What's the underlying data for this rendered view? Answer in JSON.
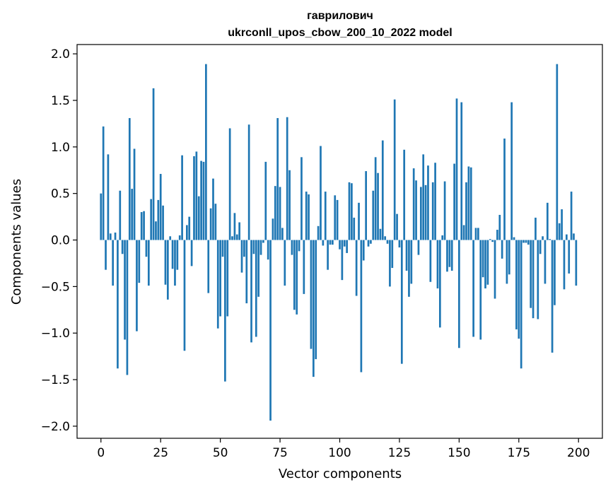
{
  "chart_data": {
    "type": "bar",
    "title": "гаврилович",
    "subtitle": "ukrconll_upos_cbow_200_10_2022 model",
    "xlabel": "Vector components",
    "ylabel": "Components values",
    "xlim": [
      -10,
      210
    ],
    "ylim": [
      -2.13,
      2.1
    ],
    "xticks": [
      0,
      25,
      50,
      75,
      100,
      125,
      150,
      175,
      200
    ],
    "xtick_labels": [
      "0",
      "25",
      "50",
      "75",
      "100",
      "125",
      "150",
      "175",
      "200"
    ],
    "yticks": [
      2.0,
      1.5,
      1.0,
      0.5,
      0.0,
      -0.5,
      -1.0,
      -1.5,
      -2.0
    ],
    "ytick_labels": [
      "2.0",
      "1.5",
      "1.0",
      "0.5",
      "0.0",
      "−0.5",
      "−1.0",
      "−1.5",
      "−2.0"
    ],
    "grid": false,
    "bar_color": "#1f77b4",
    "values": [
      0.5,
      1.22,
      -0.32,
      0.92,
      0.07,
      -0.49,
      0.08,
      -1.38,
      0.53,
      -0.15,
      -1.07,
      -1.45,
      1.31,
      0.55,
      0.98,
      -0.98,
      -0.46,
      0.3,
      0.31,
      -0.18,
      -0.49,
      0.44,
      1.63,
      0.2,
      0.43,
      0.71,
      0.37,
      -0.48,
      -0.64,
      0.04,
      -0.31,
      -0.49,
      -0.32,
      0.05,
      0.91,
      -1.19,
      0.16,
      0.25,
      -0.28,
      0.9,
      0.95,
      0.47,
      0.85,
      0.84,
      1.89,
      -0.57,
      0.34,
      0.66,
      0.39,
      -0.95,
      -0.82,
      -0.18,
      -1.52,
      -0.82,
      1.2,
      0.04,
      0.29,
      0.06,
      0.19,
      -0.35,
      -0.18,
      -0.68,
      1.24,
      -1.1,
      -0.15,
      -1.04,
      -0.61,
      -0.16,
      -0.03,
      0.84,
      -0.21,
      -1.94,
      0.23,
      0.58,
      1.31,
      0.57,
      0.13,
      -0.49,
      1.32,
      0.75,
      -0.16,
      -0.75,
      -0.8,
      -0.12,
      0.89,
      -0.58,
      0.52,
      0.49,
      -1.17,
      -1.47,
      -1.28,
      0.15,
      1.01,
      -0.06,
      0.52,
      -0.32,
      -0.05,
      -0.05,
      0.48,
      0.43,
      -0.1,
      -0.43,
      -0.07,
      -0.14,
      0.62,
      0.61,
      0.24,
      -0.6,
      0.4,
      -1.42,
      -0.22,
      0.74,
      -0.07,
      -0.04,
      0.53,
      0.89,
      0.72,
      0.12,
      1.07,
      0.04,
      -0.04,
      -0.5,
      -0.3,
      1.51,
      0.28,
      -0.08,
      -1.33,
      0.97,
      -0.33,
      -0.61,
      -0.47,
      0.77,
      0.64,
      -0.16,
      0.57,
      0.92,
      0.59,
      0.8,
      -0.45,
      0.62,
      0.83,
      -0.52,
      -0.94,
      0.05,
      0.63,
      -0.34,
      -0.29,
      -0.33,
      0.82,
      1.52,
      -1.16,
      1.48,
      0.16,
      0.62,
      0.79,
      0.78,
      -1.04,
      0.13,
      0.13,
      -1.07,
      -0.4,
      -0.52,
      -0.48,
      0.01,
      -0.02,
      -0.63,
      0.11,
      0.27,
      -0.2,
      1.09,
      -0.47,
      -0.37,
      1.48,
      0.03,
      -0.96,
      -1.06,
      -1.38,
      -0.03,
      -0.03,
      -0.05,
      -0.73,
      -0.84,
      0.24,
      -0.85,
      -0.15,
      0.04,
      -0.47,
      0.4,
      0.01,
      -1.21,
      -0.7,
      1.89,
      0.18,
      0.33,
      -0.53,
      0.06,
      -0.36,
      0.52,
      0.07,
      -0.49
    ]
  }
}
